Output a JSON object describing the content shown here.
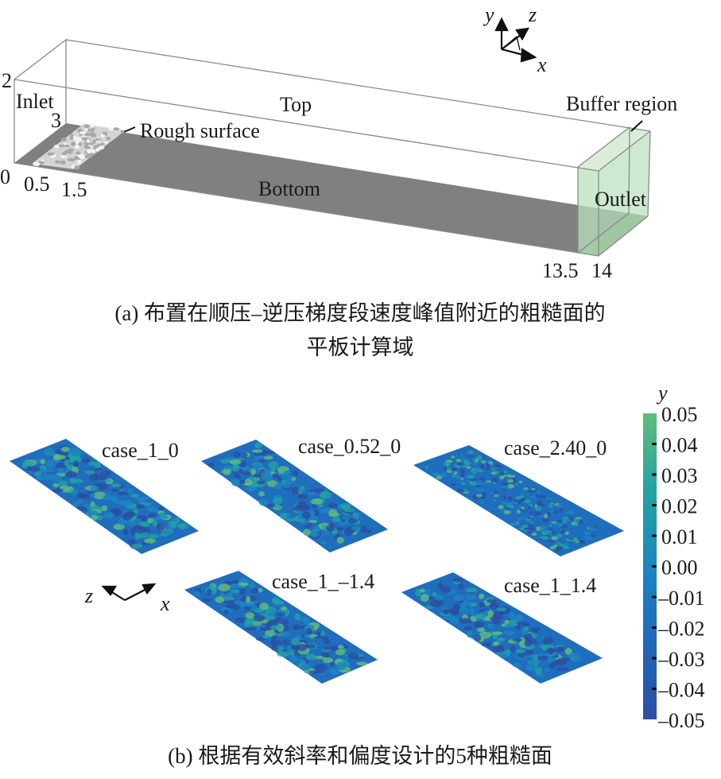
{
  "panel_a": {
    "labels": {
      "inlet": "Inlet",
      "top": "Top",
      "rough_surface": "Rough surface",
      "bottom": "Bottom",
      "buffer_region": "Buffer region",
      "outlet": "Outlet"
    },
    "dimensions": {
      "height": "2",
      "width": "3",
      "x0": "0",
      "x_rough_start": "0.5",
      "x_rough_end": "1.5",
      "x_buffer_start": "13.5",
      "x_end": "14"
    },
    "axes": {
      "x": "x",
      "y": "y",
      "z": "z"
    },
    "caption_line1": "(a) 布置在顺压–逆压梯度段速度峰值附近的粗糙面的",
    "caption_line2": "平板计算域",
    "colors": {
      "bottom": "#808080",
      "buffer": "#b8e0bc",
      "rough": "#d8d8d8"
    }
  },
  "panel_b": {
    "cases": [
      {
        "label": "case_1_0"
      },
      {
        "label": "case_0.52_0"
      },
      {
        "label": "case_2.40_0"
      },
      {
        "label": "case_1_–1.4"
      },
      {
        "label": "case_1_1.4"
      }
    ],
    "axes": {
      "z": "z",
      "x": "x"
    },
    "colorbar": {
      "title": "y",
      "min": -0.05,
      "max": 0.05,
      "ticks": [
        "0.05",
        "0.04",
        "0.03",
        "0.02",
        "0.01",
        "0.00",
        "–0.01",
        "–0.02",
        "–0.03",
        "–0.04",
        "–0.05"
      ],
      "colors": [
        "#2b4ea3",
        "#1f6dbd",
        "#1c86c0",
        "#22a3a4",
        "#63bd7a"
      ]
    },
    "caption": "(b) 根据有效斜率和偏度设计的5种粗糙面"
  }
}
